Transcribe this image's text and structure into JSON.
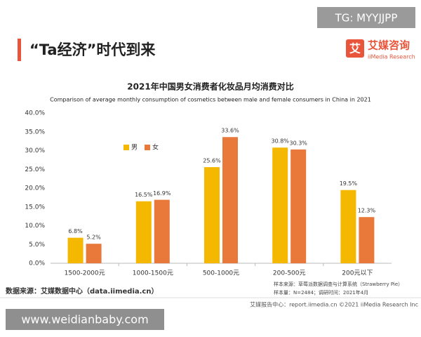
{
  "header": {
    "heading": "“Ta经济”时代到来",
    "logo_cn": "艾媒咨询",
    "logo_en": "iiMedia Research",
    "watermark_top": "TG: MYYJJPP"
  },
  "chart_data": {
    "type": "bar",
    "title": "2021年中国男女消费者化妆品月均消费对比",
    "subtitle": "Comparison of average monthly consumption of cosmetics between male and female consumers in China in 2021",
    "categories": [
      "1500-2000元",
      "1000-1500元",
      "500-1000元",
      "200-500元",
      "200元以下"
    ],
    "series": [
      {
        "name": "男",
        "color": "#f5b800",
        "values": [
          6.8,
          16.5,
          25.6,
          30.8,
          19.5
        ],
        "value_labels": [
          "6.8%",
          "16.5%",
          "25.6%",
          "30.8%",
          "19.5%"
        ]
      },
      {
        "name": "女",
        "color": "#e8793a",
        "values": [
          5.2,
          16.9,
          33.6,
          30.3,
          12.3
        ],
        "value_labels": [
          "5.2%",
          "16.9%",
          "33.6%",
          "30.3%",
          "12.3%"
        ]
      }
    ],
    "ylim": [
      0,
      40
    ],
    "yticks": [
      {
        "value": 0,
        "label": "0.0%"
      },
      {
        "value": 5,
        "label": "5.0%"
      },
      {
        "value": 10,
        "label": "10.0%"
      },
      {
        "value": 15,
        "label": "15.0%"
      },
      {
        "value": 20,
        "label": "20.0%"
      },
      {
        "value": 25,
        "label": "25.0%"
      },
      {
        "value": 30,
        "label": "30.0%"
      },
      {
        "value": 35,
        "label": "35.0%"
      },
      {
        "value": 40,
        "label": "40.0%"
      }
    ],
    "source": "数据来源：艾媒数据中心（data.iimedia.cn）",
    "sample_source": "样本来源：草莓派数据调查与计算系统（Strawberry Pie）",
    "sample_size": "样本量：N=2484；调研时间：2021年4月"
  },
  "footer": {
    "report": "艾媒报告中心：report.iimedia.cn  ©2021  iiMedia Research  Inc",
    "watermark_bottom": "www.weidianbaby.com"
  }
}
